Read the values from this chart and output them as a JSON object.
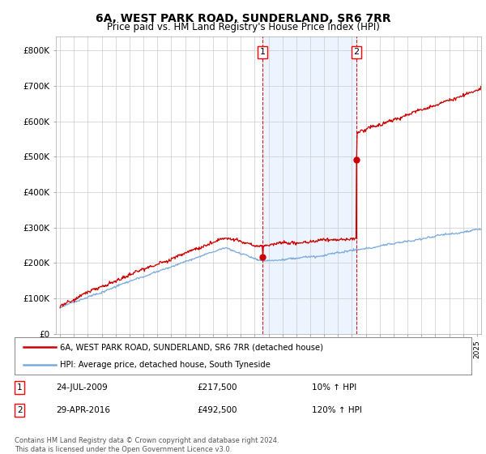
{
  "title": "6A, WEST PARK ROAD, SUNDERLAND, SR6 7RR",
  "subtitle": "Price paid vs. HM Land Registry's House Price Index (HPI)",
  "title_fontsize": 10,
  "subtitle_fontsize": 8.5,
  "ylabel_ticks": [
    0,
    100000,
    200000,
    300000,
    400000,
    500000,
    600000,
    700000,
    800000
  ],
  "ylabel_labels": [
    "£0",
    "£100K",
    "£200K",
    "£300K",
    "£400K",
    "£500K",
    "£600K",
    "£700K",
    "£800K"
  ],
  "ylim": [
    0,
    840000
  ],
  "x_start_year": 1995,
  "x_end_year": 2025,
  "transaction1_date": "24-JUL-2009",
  "transaction1_price": 217500,
  "transaction1_label": "£217,500",
  "transaction1_pct": "10% ↑ HPI",
  "transaction1_x": 2009.56,
  "transaction2_date": "29-APR-2016",
  "transaction2_price": 492500,
  "transaction2_label": "£492,500",
  "transaction2_pct": "120% ↑ HPI",
  "transaction2_x": 2016.33,
  "shade_color": "#ddeeff",
  "shade_alpha": 0.55,
  "red_line_color": "#cc0000",
  "blue_line_color": "#7aaadd",
  "dashed_line_color": "#cc0000",
  "legend_label_red": "6A, WEST PARK ROAD, SUNDERLAND, SR6 7RR (detached house)",
  "legend_label_blue": "HPI: Average price, detached house, South Tyneside",
  "footnote": "Contains HM Land Registry data © Crown copyright and database right 2024.\nThis data is licensed under the Open Government Licence v3.0.",
  "background_color": "#ffffff",
  "grid_color": "#cccccc"
}
